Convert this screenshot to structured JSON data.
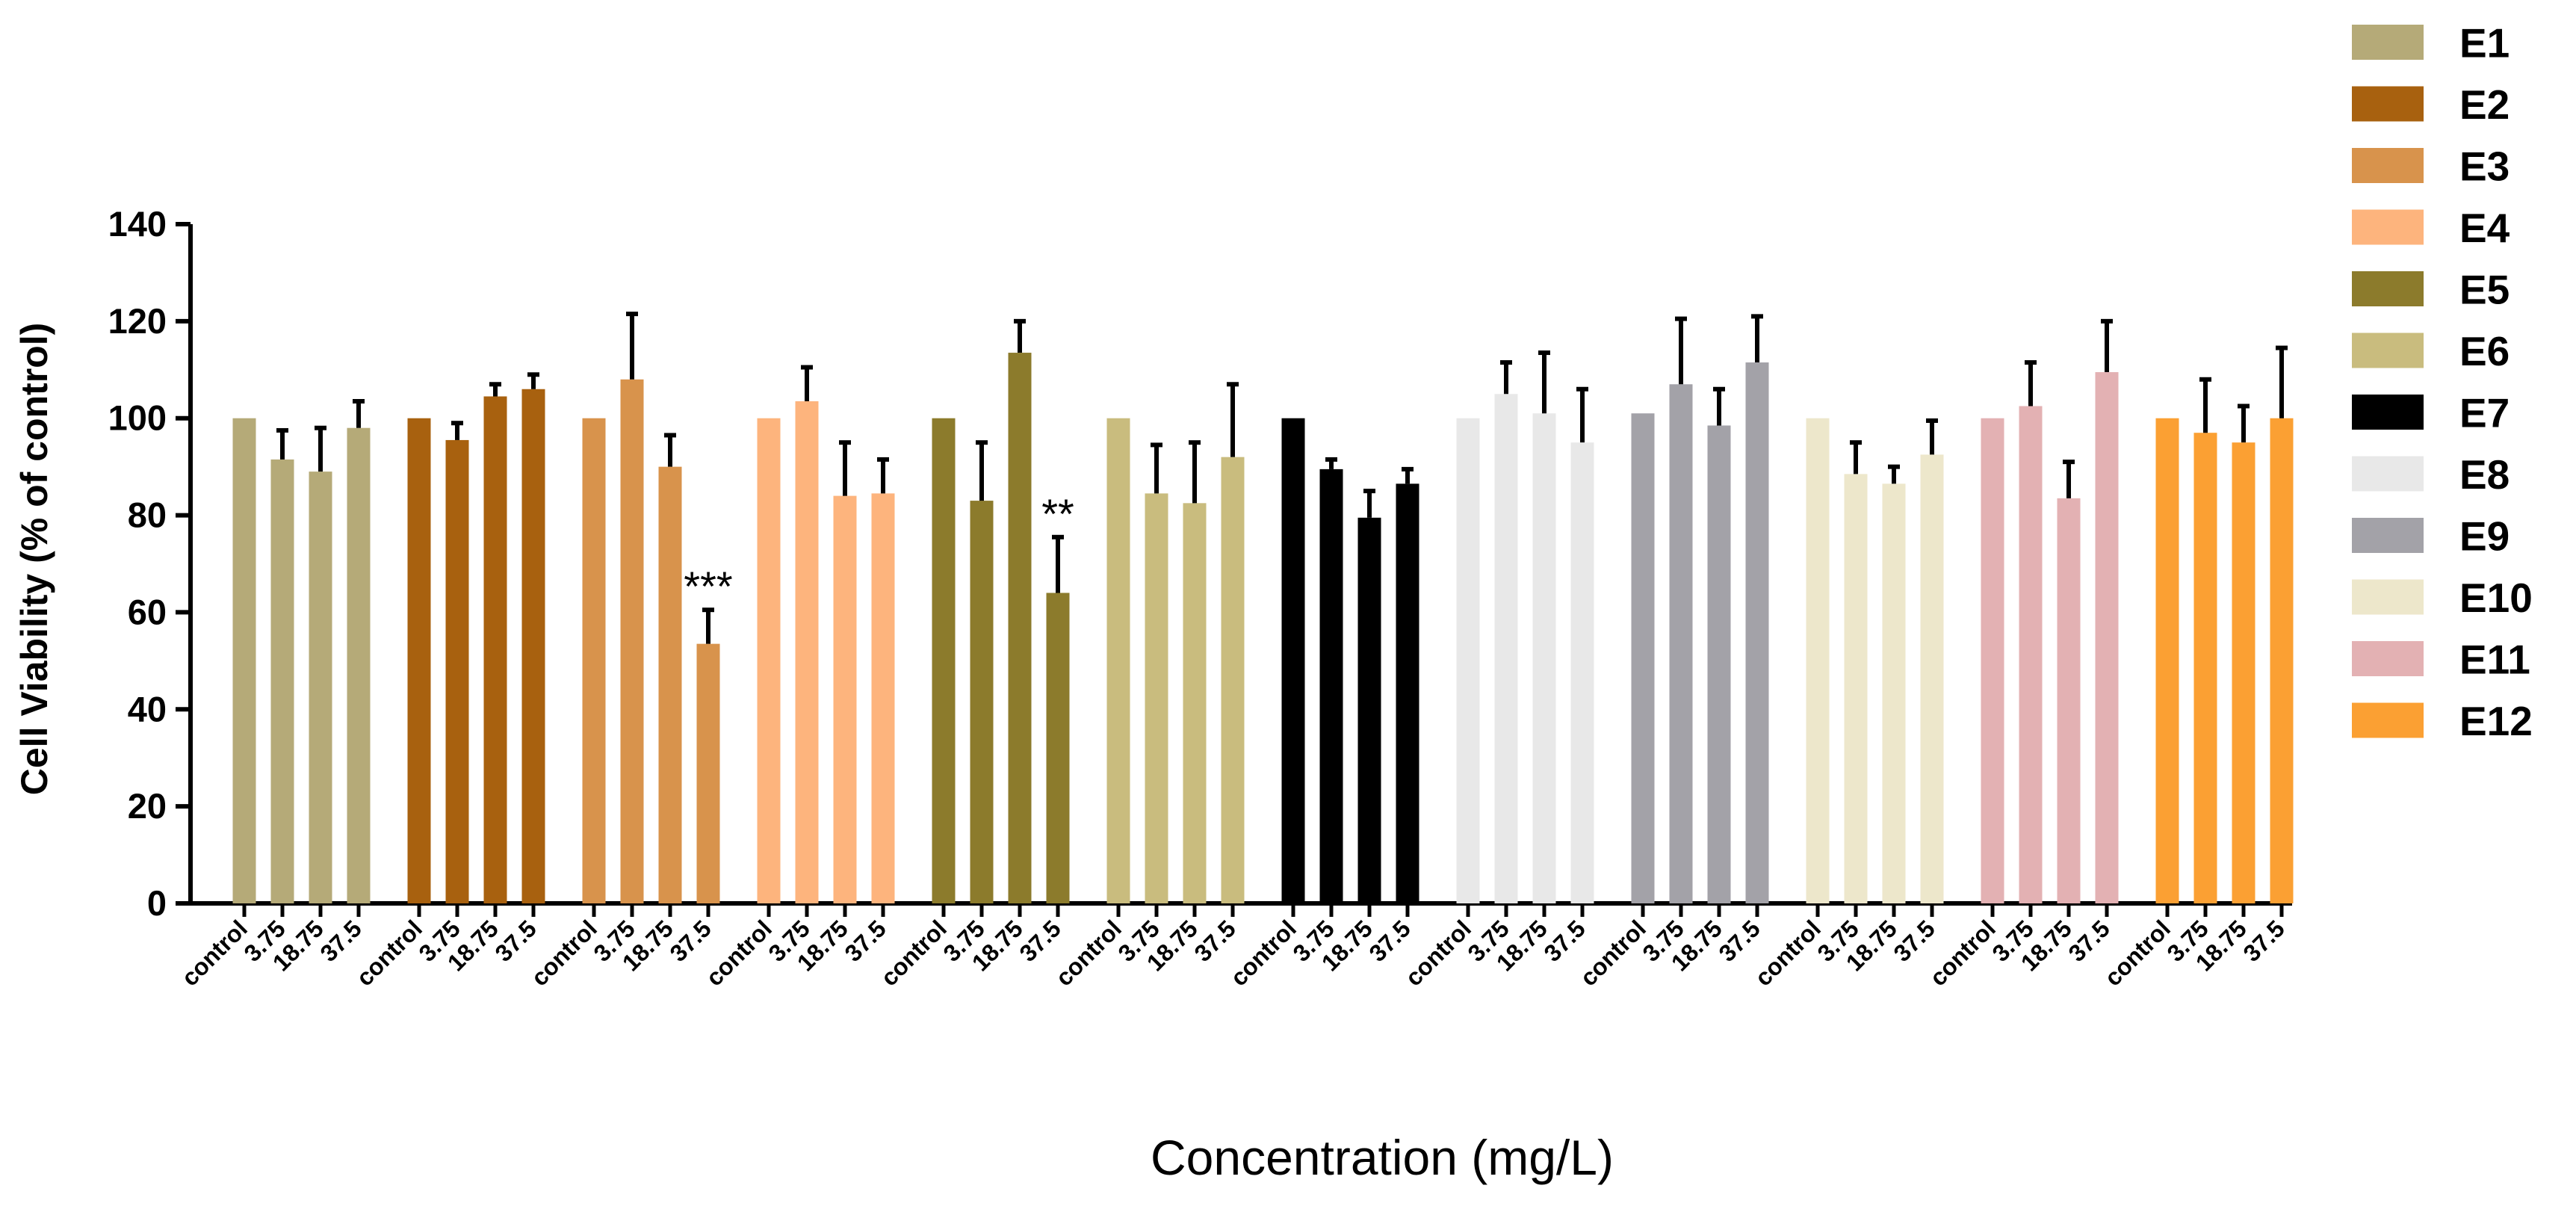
{
  "chart_data": {
    "type": "bar",
    "title": "",
    "xlabel": "Concentration (mg/L)",
    "ylabel": "Cell Viability (% of control)",
    "ylim": [
      0,
      140
    ],
    "yticks": [
      0,
      20,
      40,
      60,
      80,
      100,
      120,
      140
    ],
    "grid": false,
    "legend_position": "right",
    "categories": [
      "control",
      "3.75",
      "18.75",
      "37.5"
    ],
    "series": [
      {
        "name": "E1",
        "color": "#B5AA78",
        "values": [
          100,
          91.5,
          89,
          98
        ],
        "errors": [
          0,
          6,
          9,
          5.5
        ]
      },
      {
        "name": "E2",
        "color": "#A8610F",
        "values": [
          100,
          95.5,
          104.5,
          106
        ],
        "errors": [
          0,
          3.5,
          2.5,
          3
        ]
      },
      {
        "name": "E3",
        "color": "#D8934C",
        "values": [
          100,
          108,
          90,
          53.5
        ],
        "errors": [
          0,
          13.5,
          6.5,
          7
        ]
      },
      {
        "name": "E4",
        "color": "#FDB47D",
        "values": [
          100,
          103.5,
          84,
          84.5
        ],
        "errors": [
          0,
          7,
          11,
          7
        ]
      },
      {
        "name": "E5",
        "color": "#8C7B2C",
        "values": [
          100,
          83,
          113.5,
          64
        ],
        "errors": [
          0,
          12,
          6.5,
          11.5
        ]
      },
      {
        "name": "E6",
        "color": "#C9BC7E",
        "values": [
          100,
          84.5,
          82.5,
          92
        ],
        "errors": [
          0,
          10,
          12.5,
          15
        ]
      },
      {
        "name": "E7",
        "color": "#000000",
        "values": [
          100,
          89.5,
          79.5,
          86.5
        ],
        "errors": [
          0,
          2,
          5.5,
          3
        ]
      },
      {
        "name": "E8",
        "color": "#E8E8E8",
        "values": [
          100,
          105,
          101,
          95
        ],
        "errors": [
          0,
          6.5,
          12.5,
          11
        ]
      },
      {
        "name": "E9",
        "color": "#A3A2A8",
        "values": [
          101,
          107,
          98.5,
          111.5
        ],
        "errors": [
          0,
          13.5,
          7.5,
          9.5
        ]
      },
      {
        "name": "E10",
        "color": "#EDE7CB",
        "values": [
          100,
          88.5,
          86.5,
          92.5
        ],
        "errors": [
          0,
          6.5,
          3.5,
          7
        ]
      },
      {
        "name": "E11",
        "color": "#E3B1B3",
        "values": [
          100,
          102.5,
          83.5,
          109.5
        ],
        "errors": [
          0,
          9,
          7.5,
          10.5
        ]
      },
      {
        "name": "E12",
        "color": "#FBA033",
        "values": [
          100,
          97,
          95,
          100
        ],
        "errors": [
          0,
          11,
          7.5,
          14.5
        ]
      }
    ],
    "annotations": [
      {
        "series": "E3",
        "category": "37.5",
        "text": "***"
      },
      {
        "series": "E5",
        "category": "37.5",
        "text": "**"
      }
    ]
  }
}
